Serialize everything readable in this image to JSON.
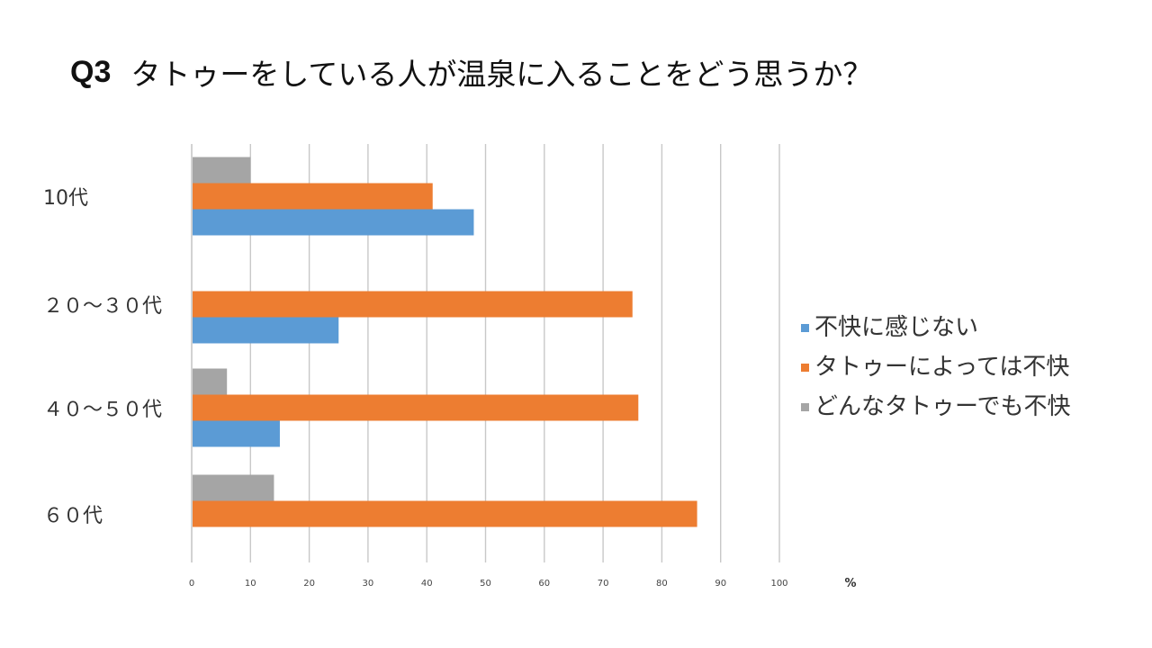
{
  "header": {
    "qnum": "Q3",
    "question": "タトゥーをしている人が温泉に入ることをどう思うか？"
  },
  "colors": {
    "gridline": "#c8c8c8",
    "axis": "#bfbfbf",
    "text": "#333333"
  },
  "chart_data": {
    "type": "bar",
    "orientation": "horizontal",
    "title": "",
    "xlabel": "%",
    "ylabel": "",
    "xlim": [
      0,
      100
    ],
    "xticks": [
      0,
      10,
      20,
      30,
      40,
      50,
      60,
      70,
      80,
      90,
      100
    ],
    "grid": true,
    "legend_position": "right",
    "categories": [
      "10代",
      "２０〜３０代",
      "４０〜５０代",
      "６０代"
    ],
    "series": [
      {
        "name": "不快に感じない",
        "color": "#5b9bd5",
        "values": [
          48,
          25,
          15,
          0
        ]
      },
      {
        "name": "タトゥーによっては不快",
        "color": "#ed7d31",
        "values": [
          41,
          75,
          76,
          86
        ]
      },
      {
        "name": "どんなタトゥーでも不快",
        "color": "#a5a5a5",
        "values": [
          10,
          0,
          6,
          14
        ]
      }
    ]
  }
}
